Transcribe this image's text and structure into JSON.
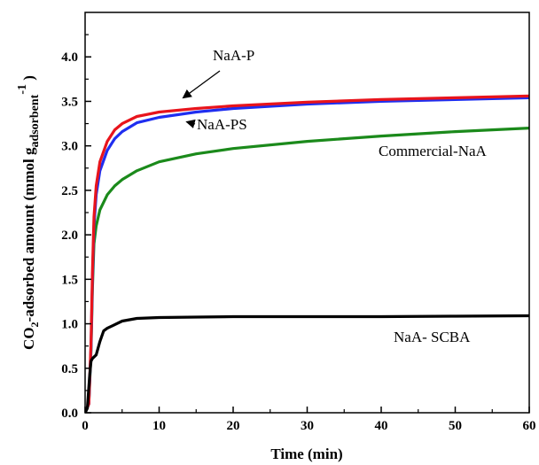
{
  "chart_data": {
    "type": "line",
    "xlabel": "Time (min)",
    "ylabel": {
      "prefix": "CO",
      "prefix_sub": "2",
      "main": "-adsorbed amount (mmol g",
      "sub": "adsorbent",
      "sup": "-1",
      "suffix": " )"
    },
    "xlim": [
      0,
      60
    ],
    "ylim": [
      0,
      4.5
    ],
    "x_ticks": [
      0,
      10,
      20,
      30,
      40,
      50,
      60
    ],
    "x_tick_labels": [
      "0",
      "10",
      "20",
      "30",
      "40",
      "50",
      "60"
    ],
    "y_ticks": [
      0,
      0.5,
      1.0,
      1.5,
      2.0,
      2.5,
      3.0,
      3.5,
      4.0
    ],
    "y_tick_labels": [
      "0.0",
      "0.5",
      "1.0",
      "1.5",
      "2.0",
      "2.5",
      "3.0",
      "3.5",
      "4.0"
    ],
    "grid": false,
    "legend": "none",
    "series": [
      {
        "name": "NaA-P",
        "color": "#e8141c",
        "points": [
          [
            0,
            0
          ],
          [
            0.5,
            0.1
          ],
          [
            0.8,
            0.8
          ],
          [
            1.0,
            1.6
          ],
          [
            1.2,
            2.2
          ],
          [
            1.5,
            2.55
          ],
          [
            2,
            2.82
          ],
          [
            3,
            3.05
          ],
          [
            4,
            3.18
          ],
          [
            5,
            3.25
          ],
          [
            7,
            3.33
          ],
          [
            10,
            3.38
          ],
          [
            15,
            3.42
          ],
          [
            20,
            3.45
          ],
          [
            30,
            3.49
          ],
          [
            40,
            3.52
          ],
          [
            50,
            3.54
          ],
          [
            60,
            3.56
          ]
        ]
      },
      {
        "name": "NaA-PS",
        "color": "#1f2ef0",
        "points": [
          [
            0,
            0
          ],
          [
            0.5,
            0.1
          ],
          [
            0.8,
            0.75
          ],
          [
            1.0,
            1.5
          ],
          [
            1.2,
            2.1
          ],
          [
            1.5,
            2.45
          ],
          [
            2,
            2.72
          ],
          [
            3,
            2.95
          ],
          [
            4,
            3.08
          ],
          [
            5,
            3.16
          ],
          [
            7,
            3.26
          ],
          [
            10,
            3.32
          ],
          [
            15,
            3.38
          ],
          [
            20,
            3.42
          ],
          [
            30,
            3.47
          ],
          [
            40,
            3.5
          ],
          [
            50,
            3.52
          ],
          [
            60,
            3.54
          ]
        ]
      },
      {
        "name": "Commercial-NaA",
        "color": "#1b8a1b",
        "points": [
          [
            0,
            0
          ],
          [
            0.5,
            0.1
          ],
          [
            0.8,
            0.7
          ],
          [
            1.0,
            1.4
          ],
          [
            1.2,
            1.9
          ],
          [
            1.5,
            2.1
          ],
          [
            2,
            2.28
          ],
          [
            3,
            2.45
          ],
          [
            4,
            2.55
          ],
          [
            5,
            2.62
          ],
          [
            7,
            2.72
          ],
          [
            10,
            2.82
          ],
          [
            15,
            2.91
          ],
          [
            20,
            2.97
          ],
          [
            30,
            3.05
          ],
          [
            40,
            3.11
          ],
          [
            50,
            3.16
          ],
          [
            60,
            3.2
          ]
        ]
      },
      {
        "name": "NaA- SCBA",
        "color": "#000000",
        "points": [
          [
            0,
            0
          ],
          [
            0.3,
            0.05
          ],
          [
            0.6,
            0.4
          ],
          [
            0.8,
            0.58
          ],
          [
            1.0,
            0.61
          ],
          [
            1.5,
            0.65
          ],
          [
            2,
            0.8
          ],
          [
            2.5,
            0.92
          ],
          [
            3,
            0.95
          ],
          [
            4,
            0.99
          ],
          [
            5,
            1.03
          ],
          [
            7,
            1.06
          ],
          [
            10,
            1.07
          ],
          [
            15,
            1.075
          ],
          [
            20,
            1.08
          ],
          [
            30,
            1.08
          ],
          [
            40,
            1.08
          ],
          [
            50,
            1.085
          ],
          [
            60,
            1.09
          ]
        ]
      }
    ],
    "annotations": [
      {
        "text": "NaA-P",
        "series": "NaA-P",
        "arrow_to": [
          13,
          3.42
        ]
      },
      {
        "text": "NaA-PS",
        "series": "NaA-PS",
        "arrow_to": [
          13,
          3.33
        ]
      },
      {
        "text": "Commercial-NaA",
        "series": "Commercial-NaA"
      },
      {
        "text": "NaA- SCBA",
        "series": "NaA- SCBA"
      }
    ]
  }
}
